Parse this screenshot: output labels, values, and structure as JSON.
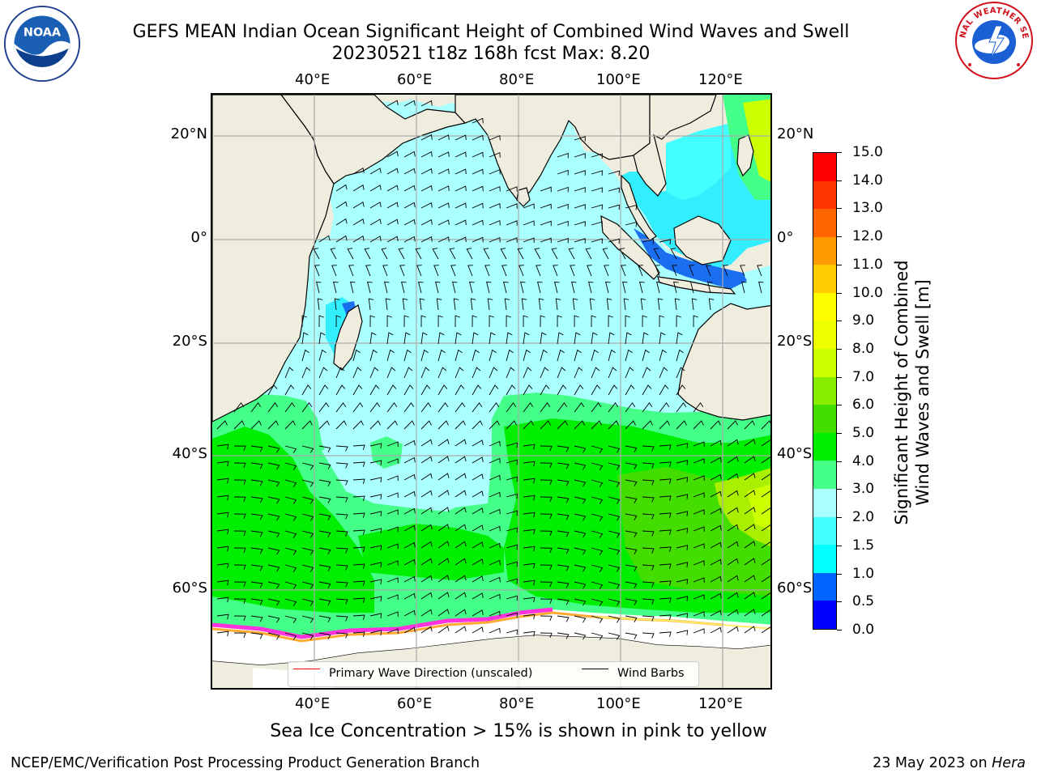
{
  "title": {
    "line1": "GEFS MEAN Indian Ocean Significant Height of Combined Wind Waves and Swell",
    "line2": "20230521 t18z 168h fcst   Max: 8.20"
  },
  "logos": {
    "noaa": {
      "icon": "noaa-logo",
      "center_text": "NOAA",
      "ring_text": "NATIONAL OCEANIC AND ATMOSPHERIC ADMINISTRATION · U.S. DEPARTMENT OF COMMERCE"
    },
    "nws": {
      "icon": "nws-logo",
      "ring_text": "NATIONAL WEATHER SERVICE"
    }
  },
  "map": {
    "projection": "cylindrical",
    "lon_range": [
      20,
      130
    ],
    "lat_range": [
      -75,
      28
    ],
    "lon_ticks": [
      "40°E",
      "60°E",
      "80°E",
      "100°E",
      "120°E"
    ],
    "lat_ticks": [
      "20°N",
      "0°",
      "20°S",
      "40°S",
      "60°S"
    ],
    "gridlines": true,
    "land_color": "#efedde",
    "ice_colors": [
      "#ff33dd",
      "#ffaa33",
      "#ffee66"
    ]
  },
  "legend": {
    "placement": "lower-center",
    "entries": [
      {
        "label": "Primary Wave Direction (unscaled)",
        "color": "#ff0000"
      },
      {
        "label": "Wind Barbs",
        "color": "#000000"
      }
    ]
  },
  "colorbar": {
    "title_line1": "Significant Height of Combined",
    "title_line2": "Wind Waves and Swell [m]",
    "tick_labels": [
      "0.0",
      "0.5",
      "1.0",
      "1.5",
      "2.0",
      "3.0",
      "4.0",
      "5.0",
      "6.0",
      "7.0",
      "8.0",
      "9.0",
      "10.0",
      "11.0",
      "12.0",
      "13.0",
      "14.0",
      "15.0"
    ],
    "colors": [
      "#0000ff",
      "#0064ff",
      "#00ffff",
      "#44ffff",
      "#aaffff",
      "#44ff88",
      "#00ee00",
      "#44dd00",
      "#88ee00",
      "#ccff00",
      "#eeff00",
      "#ffff00",
      "#ffcc00",
      "#ff9900",
      "#ff6600",
      "#ff3300",
      "#ff0000"
    ]
  },
  "ice_note": "Sea Ice Concentration > 15% is shown in pink to yellow",
  "footer": {
    "left": "NCEP/EMC/Verification Post Processing Product Generation Branch",
    "right_date": "23 May 2023 on ",
    "right_host": "Hera"
  }
}
